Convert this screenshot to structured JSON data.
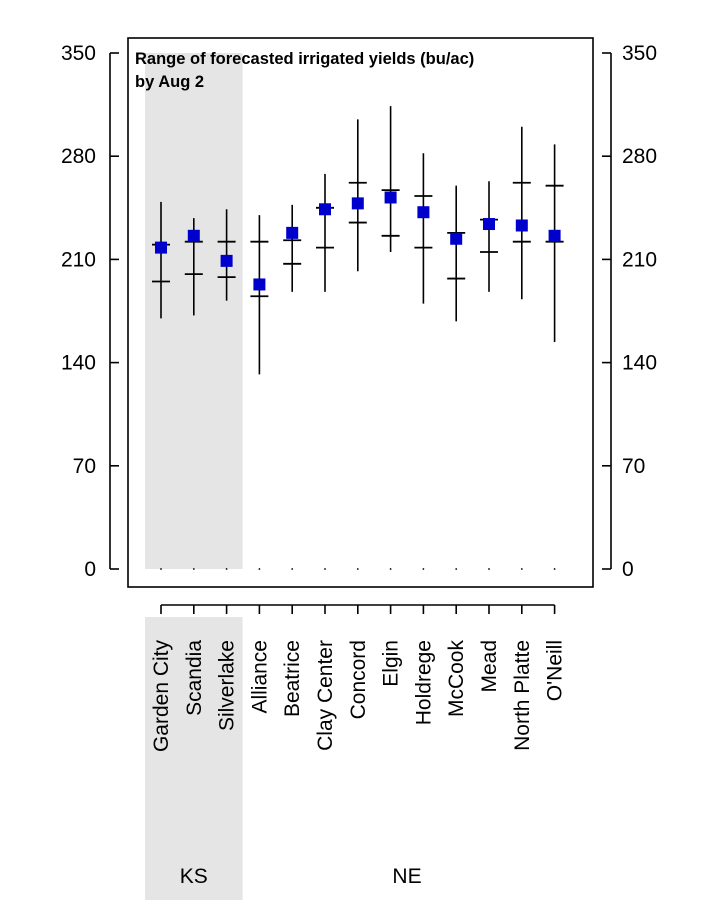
{
  "chart_data": {
    "type": "range",
    "title_lines": [
      "Range of forecasted irrigated yields (bu/ac)",
      "by Aug 2"
    ],
    "ylim": [
      0,
      350
    ],
    "yticks": [
      0,
      70,
      140,
      210,
      280,
      350
    ],
    "categories": [
      "Garden City",
      "Scandia",
      "Silverlake",
      "Alliance",
      "Beatrice",
      "Clay Center",
      "Concord",
      "Elgin",
      "Holdrege",
      "McCook",
      "Mead",
      "North Platte",
      "O'Neill"
    ],
    "groups": [
      {
        "label": "KS",
        "start": 0,
        "end": 2,
        "shaded": true
      },
      {
        "label": "NE",
        "start": 3,
        "end": 12,
        "shaded": false
      }
    ],
    "min": [
      170,
      172,
      182,
      132,
      188,
      188,
      202,
      215,
      180,
      168,
      188,
      183,
      154
    ],
    "max": [
      249,
      238,
      244,
      240,
      247,
      268,
      305,
      314,
      282,
      260,
      263,
      300,
      288
    ],
    "p25": [
      195,
      200,
      198,
      185,
      207,
      218,
      235,
      226,
      218,
      197,
      215,
      222,
      222
    ],
    "p75": [
      220,
      222,
      222,
      222,
      223,
      245,
      262,
      257,
      253,
      228,
      237,
      262,
      260
    ],
    "forecast": [
      218,
      226,
      209,
      193,
      228,
      244,
      248,
      252,
      242,
      224,
      234,
      233,
      226
    ],
    "colors": {
      "forecast": "#0000cc",
      "shade": "#e5e5e5",
      "line": "#000000"
    }
  }
}
